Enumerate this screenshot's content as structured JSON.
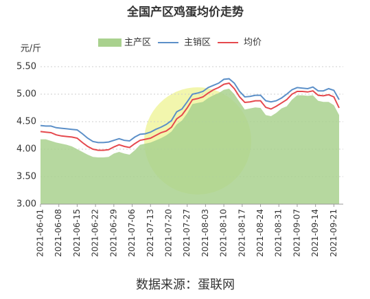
{
  "chart_data": {
    "type": "line",
    "title": "全国产区鸡蛋均价走势",
    "y_label": "元/斤",
    "source": "数据来源：蛋联网",
    "x": [
      "2021-06-01",
      "2021-06-03",
      "2021-06-05",
      "2021-06-07",
      "2021-06-09",
      "2021-06-11",
      "2021-06-13",
      "2021-06-15",
      "2021-06-17",
      "2021-06-19",
      "2021-06-21",
      "2021-06-23",
      "2021-06-25",
      "2021-06-27",
      "2021-06-29",
      "2021-07-01",
      "2021-07-03",
      "2021-07-05",
      "2021-07-07",
      "2021-07-09",
      "2021-07-11",
      "2021-07-13",
      "2021-07-15",
      "2021-07-17",
      "2021-07-19",
      "2021-07-21",
      "2021-07-23",
      "2021-07-25",
      "2021-07-27",
      "2021-07-29",
      "2021-07-31",
      "2021-08-02",
      "2021-08-04",
      "2021-08-06",
      "2021-08-08",
      "2021-08-10",
      "2021-08-12",
      "2021-08-14",
      "2021-08-16",
      "2021-08-18",
      "2021-08-20",
      "2021-08-22",
      "2021-08-24",
      "2021-08-26",
      "2021-08-28",
      "2021-08-30",
      "2021-09-01",
      "2021-09-03",
      "2021-09-05",
      "2021-09-07",
      "2021-09-09",
      "2021-09-11",
      "2021-09-13",
      "2021-09-15",
      "2021-09-17",
      "2021-09-19",
      "2021-09-21",
      "2021-09-23"
    ],
    "xticks": [
      "2021-06-01",
      "2021-06-08",
      "2021-06-15",
      "2021-06-22",
      "2021-06-29",
      "2021-07-06",
      "2021-07-13",
      "2021-07-20",
      "2021-07-27",
      "2021-08-03",
      "2021-08-10",
      "2021-08-17",
      "2021-08-24",
      "2021-08-31",
      "2021-09-07",
      "2021-09-14",
      "2021-09-21"
    ],
    "series": [
      {
        "name": "主产区",
        "color": "#a9d18e",
        "style": "area",
        "values": [
          4.18,
          4.18,
          4.15,
          4.12,
          4.1,
          4.08,
          4.05,
          4.0,
          3.95,
          3.9,
          3.86,
          3.85,
          3.85,
          3.86,
          3.92,
          3.95,
          3.92,
          3.9,
          3.98,
          4.08,
          4.1,
          4.12,
          4.16,
          4.2,
          4.25,
          4.32,
          4.45,
          4.52,
          4.65,
          4.82,
          4.84,
          4.86,
          4.93,
          4.98,
          5.02,
          5.08,
          5.1,
          5.0,
          4.86,
          4.72,
          4.74,
          4.76,
          4.75,
          4.62,
          4.6,
          4.66,
          4.74,
          4.78,
          4.9,
          4.98,
          4.98,
          4.97,
          4.98,
          4.88,
          4.86,
          4.86,
          4.8,
          4.62
        ]
      },
      {
        "name": "主销区",
        "color": "#5b8fc8",
        "style": "line",
        "values": [
          4.43,
          4.42,
          4.42,
          4.39,
          4.38,
          4.37,
          4.36,
          4.35,
          4.28,
          4.2,
          4.14,
          4.12,
          4.12,
          4.13,
          4.16,
          4.19,
          4.16,
          4.15,
          4.22,
          4.27,
          4.28,
          4.31,
          4.36,
          4.4,
          4.45,
          4.52,
          4.68,
          4.73,
          4.86,
          5.0,
          5.02,
          5.05,
          5.12,
          5.16,
          5.2,
          5.27,
          5.28,
          5.2,
          5.05,
          4.95,
          4.96,
          4.98,
          4.98,
          4.88,
          4.86,
          4.88,
          4.93,
          5.0,
          5.08,
          5.12,
          5.11,
          5.1,
          5.13,
          5.06,
          5.06,
          5.1,
          5.07,
          4.9
        ]
      },
      {
        "name": "均价",
        "color": "#e5484d",
        "style": "line",
        "values": [
          4.32,
          4.31,
          4.3,
          4.26,
          4.24,
          4.23,
          4.22,
          4.2,
          4.12,
          4.05,
          4.0,
          3.98,
          3.98,
          3.99,
          4.04,
          4.08,
          4.05,
          4.03,
          4.1,
          4.16,
          4.18,
          4.2,
          4.25,
          4.3,
          4.33,
          4.4,
          4.55,
          4.62,
          4.75,
          4.9,
          4.92,
          4.95,
          5.02,
          5.08,
          5.12,
          5.18,
          5.2,
          5.1,
          4.95,
          4.85,
          4.86,
          4.88,
          4.88,
          4.76,
          4.73,
          4.78,
          4.84,
          4.9,
          5.0,
          5.05,
          5.05,
          5.04,
          5.06,
          4.98,
          4.97,
          4.99,
          4.95,
          4.75
        ]
      }
    ],
    "ylim": [
      3,
      5.5
    ],
    "yticks": [
      {
        "value": 3,
        "label": "3.00"
      },
      {
        "value": 3.5,
        "label": "3.50"
      },
      {
        "value": 4,
        "label": "4.00"
      },
      {
        "value": 4.5,
        "label": "4.50"
      },
      {
        "value": 5,
        "label": "5.00"
      },
      {
        "value": 5.5,
        "label": "5.50"
      }
    ],
    "grid": true
  }
}
